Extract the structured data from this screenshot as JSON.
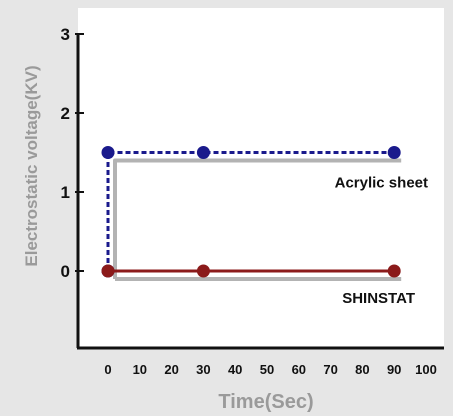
{
  "chart_data": {
    "type": "line",
    "title": "",
    "xlabel": "Time(Sec)",
    "ylabel": "Electrostatic voltage(KV)",
    "x_ticks": [
      "0",
      "10",
      "20",
      "30",
      "40",
      "50",
      "60",
      "70",
      "80",
      "90",
      "100"
    ],
    "y_ticks": [
      "3",
      "2",
      "1",
      "0"
    ],
    "xlim": [
      0,
      100
    ],
    "ylim": [
      -0.9,
      3
    ],
    "grid": false,
    "series": [
      {
        "name": "Acrylic sheet",
        "x": [
          0,
          0,
          30,
          90
        ],
        "y": [
          0,
          1.5,
          1.5,
          1.5
        ],
        "color": "#1a1a8c",
        "style": "dashed"
      },
      {
        "name": "SHINSTAT",
        "x": [
          0,
          30,
          90
        ],
        "y": [
          0,
          0,
          0
        ],
        "color": "#8b1a1a",
        "style": "solid"
      }
    ]
  },
  "colors": {
    "background": "#e6e6e6",
    "plot_background": "#ffffff",
    "axis": "#111111",
    "shadow": "#b3b3b3"
  }
}
